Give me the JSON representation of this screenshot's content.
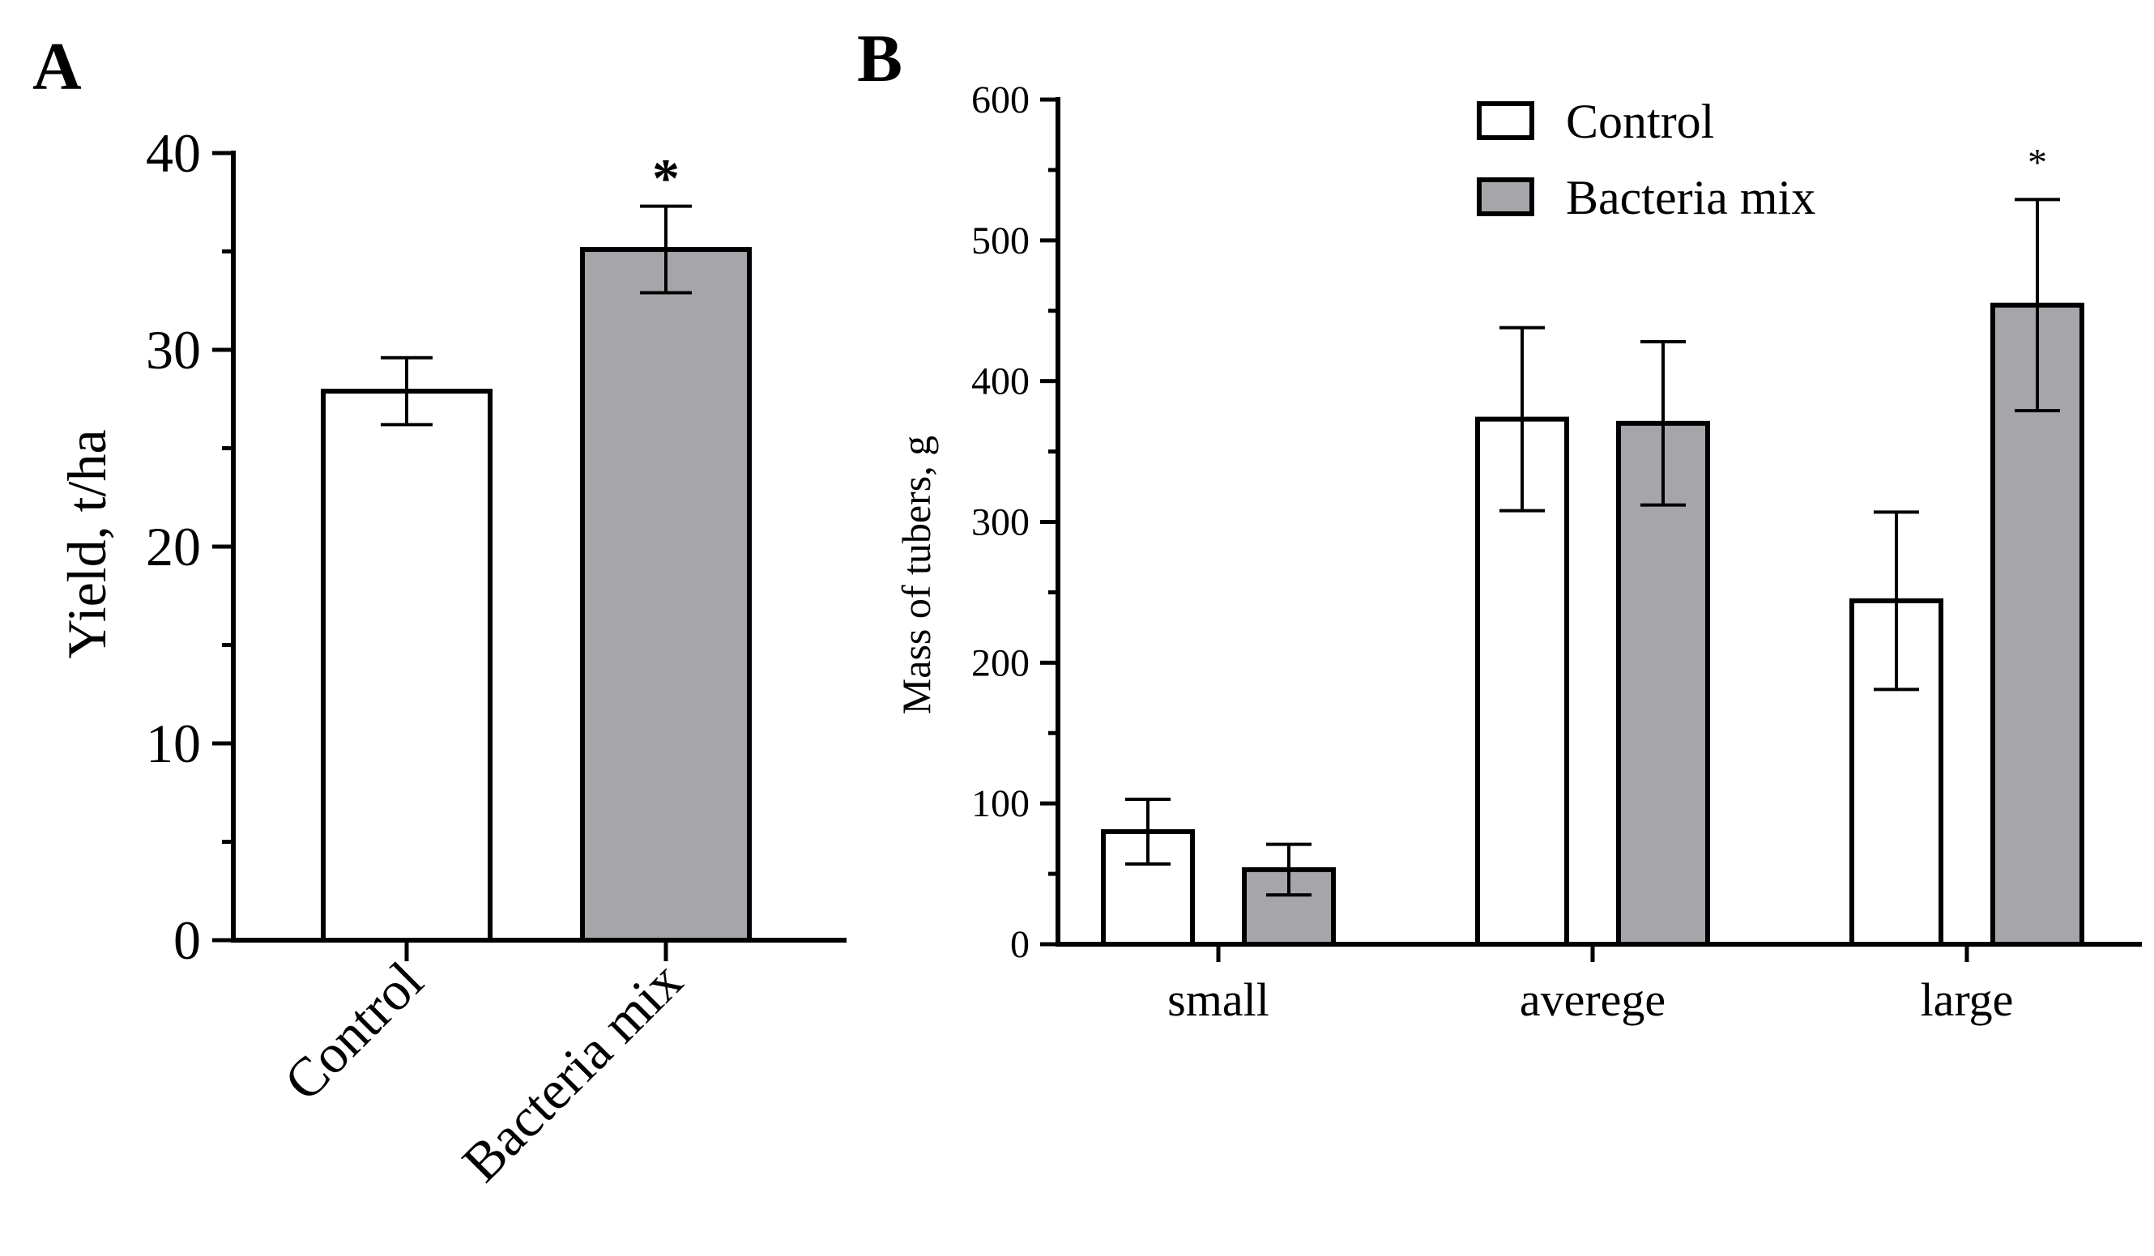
{
  "figure": {
    "colors": {
      "control": "#ffffff",
      "bacteria": "#a6a6aa",
      "stroke": "#000000"
    }
  },
  "chart_data": [
    {
      "panel": "A",
      "type": "bar",
      "categories": [
        "Control",
        "Bacteria mix"
      ],
      "values": [
        27.9,
        35.1
      ],
      "errors": [
        1.7,
        2.2
      ],
      "significance": [
        "",
        "*"
      ],
      "bar_colors": [
        "#ffffff",
        "#a6a6aa"
      ],
      "ylabel": "Yield, t/ha",
      "xlabel": "",
      "ylim": [
        0,
        40
      ],
      "yticks": [
        0,
        10,
        20,
        30,
        40
      ],
      "ytick_labels": [
        "0",
        "10",
        "20",
        "30",
        "40"
      ]
    },
    {
      "panel": "B",
      "type": "bar",
      "categories": [
        "small",
        "averege",
        "large"
      ],
      "series": [
        {
          "name": "Control",
          "values": [
            80,
            373,
            244
          ],
          "errors": [
            23,
            65,
            63
          ],
          "color": "#ffffff",
          "significance": [
            "",
            "",
            ""
          ]
        },
        {
          "name": "Bacteria mix",
          "values": [
            53,
            370,
            454
          ],
          "errors": [
            18,
            58,
            75
          ],
          "color": "#a6a6aa",
          "significance": [
            "",
            "",
            "*"
          ]
        }
      ],
      "ylabel": "Mass of tubers, g",
      "xlabel": "",
      "ylim": [
        0,
        600
      ],
      "yticks": [
        0,
        100,
        200,
        300,
        400,
        500,
        600
      ],
      "ytick_labels": [
        "0",
        "100",
        "200",
        "300",
        "400",
        "500",
        "600"
      ],
      "legend": {
        "position": "top-right",
        "entries": [
          "Control",
          "Bacteria mix"
        ]
      }
    }
  ]
}
